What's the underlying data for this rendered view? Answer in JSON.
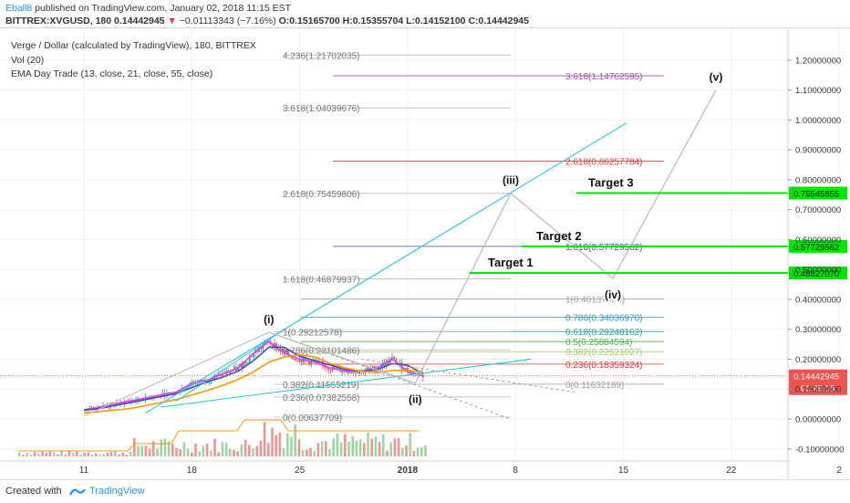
{
  "header": {
    "author": "Eball8",
    "published": "published on TradingView.com, January 02, 2018 11:15 EST",
    "symbol": "BITTREX:XVGUSD, 180",
    "last": "0.14442945",
    "change": "−0.01113343 (−7.16%)",
    "open": "O:0.15165700",
    "high": "H:0.15355704",
    "low": "L:0.14152100",
    "close": "C:0.14442945"
  },
  "legend": {
    "title": "Verge / Dollar (calculated by TradingView), 180, BITTREX",
    "vol": "Vol (20)",
    "ema": "EMA Day Trade (13, close, 21, close, 55, close)"
  },
  "footer": {
    "created_with": "Created with",
    "brand": "TradingView"
  },
  "colors": {
    "up": "#26a69a",
    "down": "#ef5350",
    "trend": "#26c6da",
    "wave": "#9e9e9e",
    "target": "#00e600",
    "ema13": "#e040fb",
    "ema21": "#3f51b5",
    "ema55": "#ff9800"
  },
  "chart_data": {
    "type": "line",
    "y_axis_ticks": [
      "1.20000000",
      "1.10000000",
      "1.00000000",
      "0.90000000",
      "0.80000000",
      "0.70000000",
      "0.60000000",
      "0.50000000",
      "0.40000000",
      "0.30000000",
      "0.20000000",
      "0.10000000",
      "0.00000000",
      "-0.10000000"
    ],
    "x_axis_ticks": [
      "11",
      "18",
      "25",
      "2018",
      "8",
      "15",
      "22",
      "2"
    ],
    "ylim": [
      -0.13,
      1.24
    ],
    "price_series_approx": {
      "x_days_from_dec11": [
        0,
        1,
        2,
        3,
        4,
        5,
        6,
        7,
        8,
        9,
        10,
        11,
        12,
        13,
        14,
        15,
        16,
        17,
        18,
        19,
        20,
        21,
        22
      ],
      "close": [
        0.03,
        0.04,
        0.05,
        0.06,
        0.07,
        0.08,
        0.09,
        0.12,
        0.13,
        0.15,
        0.17,
        0.22,
        0.26,
        0.22,
        0.2,
        0.19,
        0.17,
        0.16,
        0.16,
        0.17,
        0.2,
        0.16,
        0.144
      ]
    },
    "fib_levels_right": [
      {
        "label": "3.618(1.14762595)",
        "value": 1.14762595,
        "color": "#ab47bc"
      },
      {
        "label": "2.618(0.86257784)",
        "value": 0.86257784,
        "color": "#e53935"
      },
      {
        "label": "1.618(0.57729562)",
        "value": 0.57729562,
        "color": "#3f51b5"
      },
      {
        "label": "1(0.40137000)",
        "value": 0.40137,
        "color": "#9e9e9e"
      },
      {
        "label": "0.786(0.34036970)",
        "value": 0.3403697,
        "color": "#2196f3"
      },
      {
        "label": "0.618(0.29248162)",
        "value": 0.29248162,
        "color": "#26a69a"
      },
      {
        "label": "0.5(0.25884594)",
        "value": 0.25884594,
        "color": "#4caf50"
      },
      {
        "label": "0.382(0.22521027)",
        "value": 0.22521027,
        "color": "#9ccc65"
      },
      {
        "label": "0.236(0.18359324)",
        "value": 0.18359324,
        "color": "#e53935"
      },
      {
        "label": "0(0.11632189)",
        "value": 0.11632189,
        "color": "#9e9e9e"
      }
    ],
    "fib_levels_left": [
      {
        "label": "4.236(1.21702035)",
        "value": 1.21702035
      },
      {
        "label": "3.618(1.04039676)",
        "value": 1.04039676
      },
      {
        "label": "2.618(0.75459806)",
        "value": 0.75459806
      },
      {
        "label": "1.618(0.46879937)",
        "value": 0.46879937
      },
      {
        "label": "1(0.29212578)",
        "value": 0.29212578
      },
      {
        "label": "0.786(0.23101486)",
        "value": 0.23101486
      },
      {
        "label": "0.382(0.11555219)",
        "value": 0.11555219
      },
      {
        "label": "0.236(0.07382558)",
        "value": 0.07382558
      },
      {
        "label": "0(0.00637709)",
        "value": 0.00637709
      }
    ],
    "targets": [
      {
        "label": "Target 1",
        "value": 0.4882707,
        "axis_label": "0.48827070"
      },
      {
        "label": "Target 2",
        "value": 0.57729562,
        "axis_label": "0.57729562"
      },
      {
        "label": "Target 3",
        "value": 0.75545855,
        "axis_label": "0.75545855"
      }
    ],
    "waves": [
      {
        "label": "(i)",
        "value": 0.29
      },
      {
        "label": "(ii)",
        "value": 0.12
      },
      {
        "label": "(iii)",
        "value": 0.755
      },
      {
        "label": "(iv)",
        "value": 0.47
      },
      {
        "label": "(v)",
        "value": 1.11
      }
    ],
    "price_tag": {
      "value": 0.14442945,
      "label": "0.14442945",
      "countdown": "01:45:18"
    }
  }
}
